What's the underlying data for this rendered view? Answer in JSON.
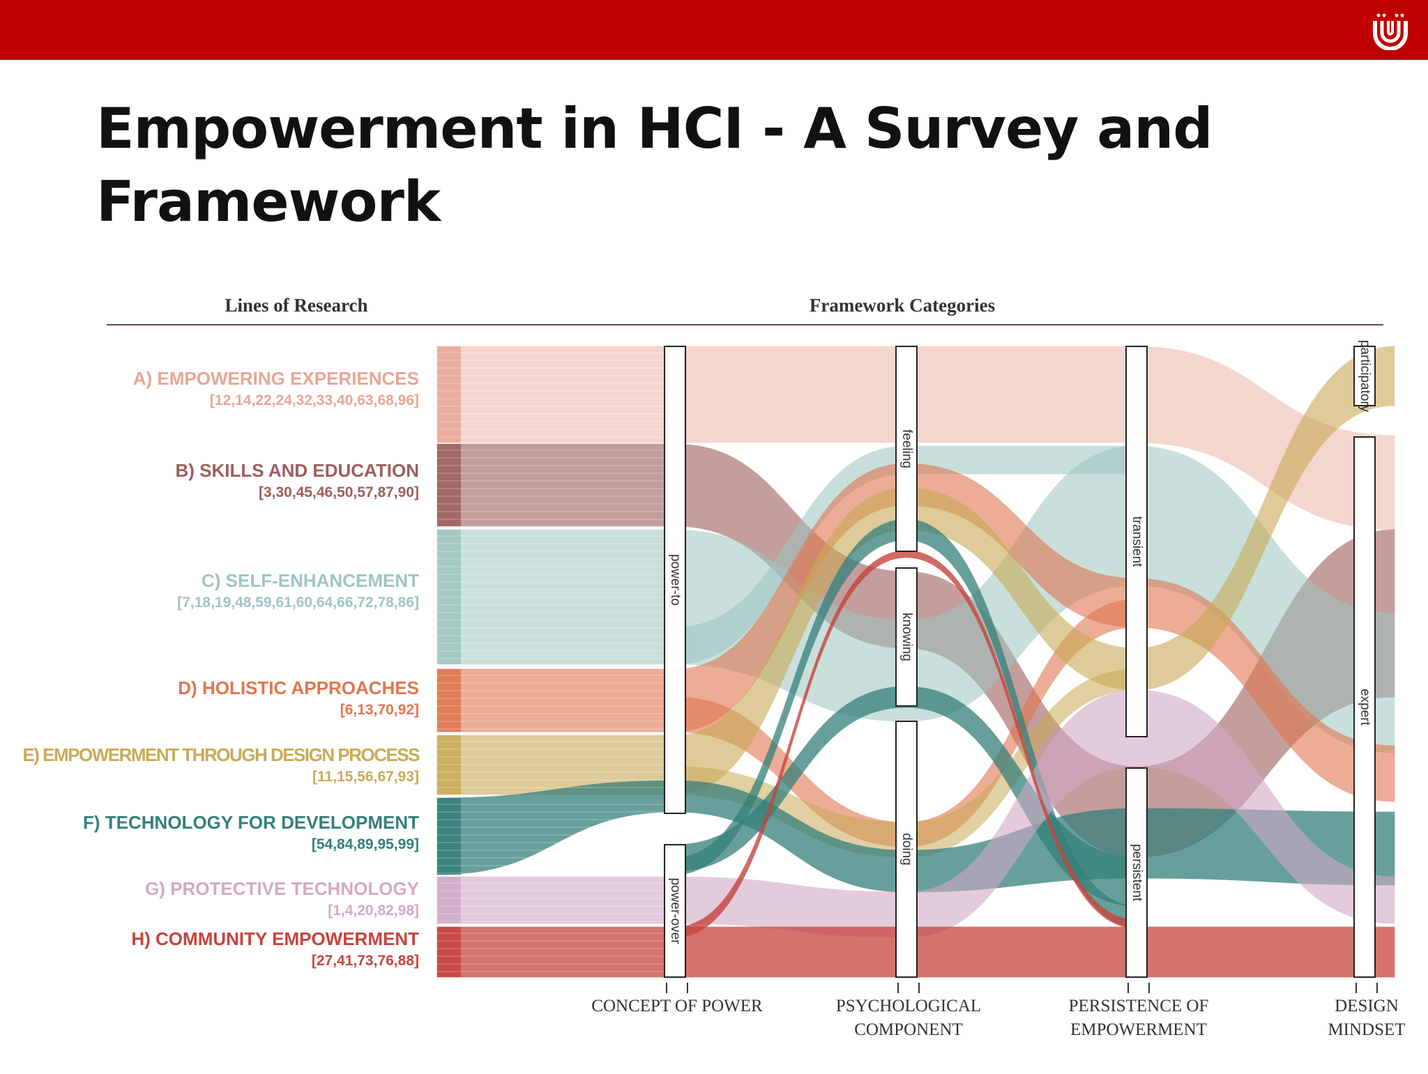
{
  "header": {
    "logo_icon": "university-logo-icon",
    "bar_color": "#bf0000"
  },
  "slide": {
    "title": "Empowerment in HCI - A Survey and Framework"
  },
  "diagram": {
    "section_left": "Lines of Research",
    "section_right": "Framework Categories",
    "lanes": [
      {
        "key": "A",
        "label": "A) EMPOWERING EXPERIENCES",
        "refs": "[12,14,22,24,32,33,40,63,68,96]",
        "color": "#e8a697"
      },
      {
        "key": "B",
        "label": "B) SKILLS AND EDUCATION",
        "refs": "[3,30,45,46,50,57,87,90]",
        "color": "#9c5f5c"
      },
      {
        "key": "C",
        "label": "C) SELF-ENHANCEMENT",
        "refs": "[7,18,19,48,59,61,60,64,66,72,78,86]",
        "color": "#9ec5c1"
      },
      {
        "key": "D",
        "label": "D) HOLISTIC APPROACHES",
        "refs": "[6,13,70,92]",
        "color": "#e0764f"
      },
      {
        "key": "E",
        "label": "E) EMPOWERMENT THROUGH DESIGN PROCESS",
        "refs": "[11,15,56,67,93]",
        "color": "#c9aa57"
      },
      {
        "key": "F",
        "label": "F) TECHNOLOGY FOR DEVELOPMENT",
        "refs": "[54,84,89,95,99]",
        "color": "#357f7a"
      },
      {
        "key": "G",
        "label": "G) PROTECTIVE TECHNOLOGY",
        "refs": "[1,4,20,82,98]",
        "color": "#d2a9c6"
      },
      {
        "key": "H",
        "label": "H) COMMUNITY EMPOWERMENT",
        "refs": "[27,41,73,76,88]",
        "color": "#c6443e"
      }
    ],
    "axes": [
      {
        "label_line1": "CONCEPT OF POWER",
        "label_line2": "",
        "categories": [
          "power-to",
          "power-over"
        ]
      },
      {
        "label_line1": "PSYCHOLOGICAL",
        "label_line2": "COMPONENT",
        "categories": [
          "feeling",
          "knowing",
          "doing"
        ]
      },
      {
        "label_line1": "PERSISTENCE OF",
        "label_line2": "EMPOWERMENT",
        "categories": [
          "transient",
          "persistent"
        ]
      },
      {
        "label_line1": "DESIGN",
        "label_line2": "MINDSET",
        "categories": [
          "participatory",
          "expert"
        ]
      }
    ]
  }
}
